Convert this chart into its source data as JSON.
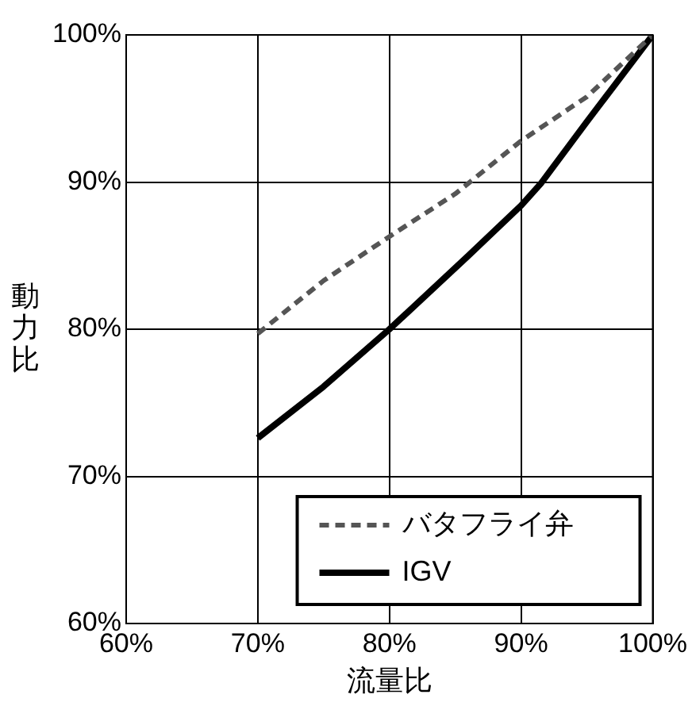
{
  "chart_data": {
    "type": "line",
    "xlabel": "流量比",
    "ylabel": "動力比",
    "xlim": [
      60,
      100
    ],
    "xticks": [
      {
        "value": 60,
        "label": "60%"
      },
      {
        "value": 70,
        "label": "70%"
      },
      {
        "value": 80,
        "label": "80%"
      },
      {
        "value": 90,
        "label": "90%"
      },
      {
        "value": 100,
        "label": "100%"
      }
    ],
    "ylim": [
      60,
      100
    ],
    "yticks": [
      {
        "value": 60,
        "label": "60%"
      },
      {
        "value": 70,
        "label": "70%"
      },
      {
        "value": 80,
        "label": "80%"
      },
      {
        "value": 90,
        "label": "90%"
      },
      {
        "value": 100,
        "label": "100%"
      }
    ],
    "grid": true,
    "legend": "bottom right",
    "marker": "none",
    "series": [
      {
        "name": "バタフライ弁",
        "color": "#555555",
        "line_style": "dashed",
        "x": [
          70,
          75,
          80,
          85,
          90,
          95,
          100
        ],
        "values": [
          79.7,
          83.3,
          86.3,
          89.2,
          92.8,
          95.8,
          100
        ]
      },
      {
        "name": "IGV",
        "color": "#000000",
        "line_style": "solid",
        "x": [
          70,
          75,
          80,
          86,
          90,
          91.5,
          95,
          100
        ],
        "values": [
          72.6,
          76.1,
          80,
          85,
          88.4,
          89.9,
          94.1,
          100
        ]
      }
    ]
  }
}
